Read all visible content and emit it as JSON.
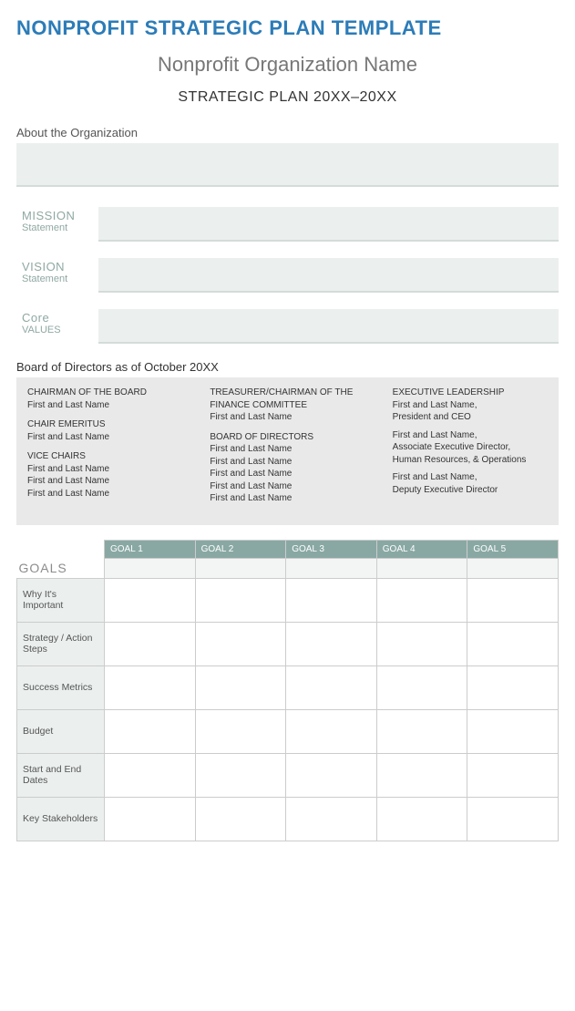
{
  "header": {
    "title": "NONPROFIT STRATEGIC PLAN TEMPLATE",
    "org_name": "Nonprofit Organization Name",
    "plan_years": "STRATEGIC PLAN 20XX–20XX"
  },
  "about": {
    "label": "About the Organization",
    "value": ""
  },
  "statements": [
    {
      "title": "MISSION",
      "subtitle": "Statement",
      "value": ""
    },
    {
      "title": "VISION",
      "subtitle": "Statement",
      "value": ""
    },
    {
      "title": "Core",
      "subtitle": "VALUES",
      "value": ""
    }
  ],
  "board": {
    "label": "Board of Directors as of October 20XX",
    "columns": [
      [
        {
          "title": "CHAIRMAN OF THE BOARD",
          "lines": [
            "First and Last Name"
          ]
        },
        {
          "title": "CHAIR EMERITUS",
          "lines": [
            "First and Last Name"
          ]
        },
        {
          "title": "VICE CHAIRS",
          "lines": [
            "First and Last Name",
            "First and Last Name",
            "First and Last Name"
          ]
        }
      ],
      [
        {
          "title": "TREASURER/CHAIRMAN OF THE FINANCE COMMITTEE",
          "lines": [
            "First and Last Name"
          ]
        },
        {
          "title": "BOARD OF DIRECTORS",
          "lines": [
            "First and Last Name",
            "First and Last Name",
            "First and Last Name",
            "First and Last Name",
            "First and Last Name"
          ]
        }
      ],
      [
        {
          "title": "EXECUTIVE LEADERSHIP",
          "lines": [
            "First and Last Name, President and CEO",
            "First and Last Name, Associate Executive Director, Human Resources, & Operations",
            "First and Last Name, Deputy Executive Director"
          ]
        }
      ]
    ]
  },
  "goals": {
    "side_label": "GOALS",
    "headers": [
      "GOAL 1",
      "GOAL 2",
      "GOAL 3",
      "GOAL 4",
      "GOAL 5"
    ],
    "goal_values": [
      "",
      "",
      "",
      "",
      ""
    ],
    "rows": [
      "Why It's Important",
      "Strategy / Action Steps",
      "Success Metrics",
      "Budget",
      "Start and End Dates",
      "Key Stakeholders"
    ],
    "cells": [
      [
        "",
        "",
        "",
        "",
        ""
      ],
      [
        "",
        "",
        "",
        "",
        ""
      ],
      [
        "",
        "",
        "",
        "",
        ""
      ],
      [
        "",
        "",
        "",
        "",
        ""
      ],
      [
        "",
        "",
        "",
        "",
        ""
      ],
      [
        "",
        "",
        "",
        "",
        ""
      ]
    ]
  },
  "colors": {
    "title": "#2c7cb8",
    "muted": "#8fa8a3",
    "panel": "#ebf0ee",
    "panel_border": "#d4dcd9",
    "board_bg": "#e9e9e9",
    "goal_header_bg": "#89a8a3",
    "grid_border": "#cccccc"
  }
}
